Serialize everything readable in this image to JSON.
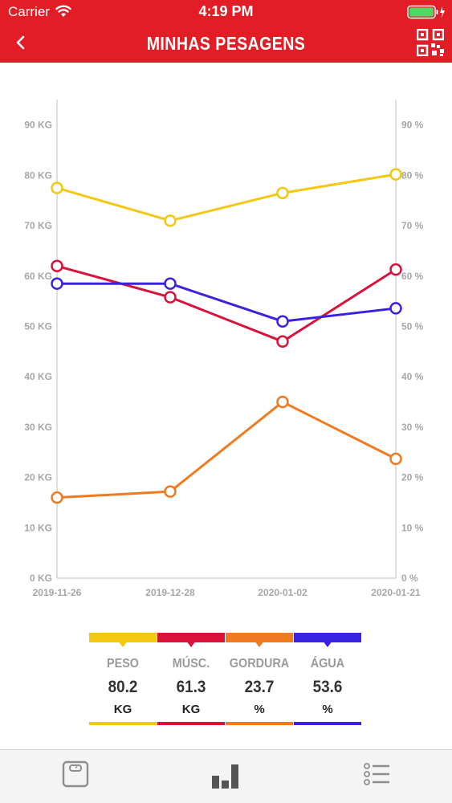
{
  "status_bar": {
    "carrier": "Carrier",
    "time": "4:19 PM"
  },
  "nav": {
    "title": "MINHAS PESAGENS",
    "back_icon": "chevron-left-icon",
    "qr_icon": "qr-code-icon"
  },
  "colors": {
    "brand_red": "#e31d25",
    "peso": "#f2c811",
    "musc": "#d9123a",
    "gordura": "#ee7b22",
    "agua": "#3b22e0"
  },
  "chart_data": {
    "type": "line",
    "x": [
      "2019-11-26",
      "2019-12-28",
      "2020-01-02",
      "2020-01-21"
    ],
    "left_axis": {
      "ticks": [
        "0 KG",
        "10 KG",
        "20 KG",
        "30 KG",
        "40 KG",
        "50 KG",
        "60 KG",
        "70 KG",
        "80 KG",
        "90 KG"
      ],
      "ylim": [
        0,
        95
      ]
    },
    "right_axis": {
      "ticks": [
        "0 %",
        "10 %",
        "20 %",
        "30 %",
        "40 %",
        "50 %",
        "60 %",
        "70 %",
        "80 %",
        "90 %"
      ],
      "ylim": [
        0,
        95
      ]
    },
    "grid": false,
    "series": [
      {
        "key": "peso",
        "values": [
          77.5,
          71,
          76.5,
          80.2
        ]
      },
      {
        "key": "musc",
        "values": [
          62,
          55.8,
          47,
          61.3
        ]
      },
      {
        "key": "agua",
        "values": [
          58.5,
          58.5,
          51,
          53.6
        ]
      },
      {
        "key": "gordura",
        "values": [
          16,
          17.2,
          35,
          23.7
        ]
      }
    ]
  },
  "legend": [
    {
      "key": "peso",
      "name": "PESO",
      "value": "80.2",
      "unit": "KG"
    },
    {
      "key": "musc",
      "name": "MÚSC.",
      "value": "61.3",
      "unit": "KG"
    },
    {
      "key": "gordura",
      "name": "GORDURA",
      "value": "23.7",
      "unit": "%"
    },
    {
      "key": "agua",
      "name": "ÁGUA",
      "value": "53.6",
      "unit": "%"
    }
  ],
  "tab_bar": {
    "tabs": [
      {
        "icon": "scale-icon",
        "active": false
      },
      {
        "icon": "bar-chart-icon",
        "active": true
      },
      {
        "icon": "list-icon",
        "active": false
      }
    ]
  }
}
